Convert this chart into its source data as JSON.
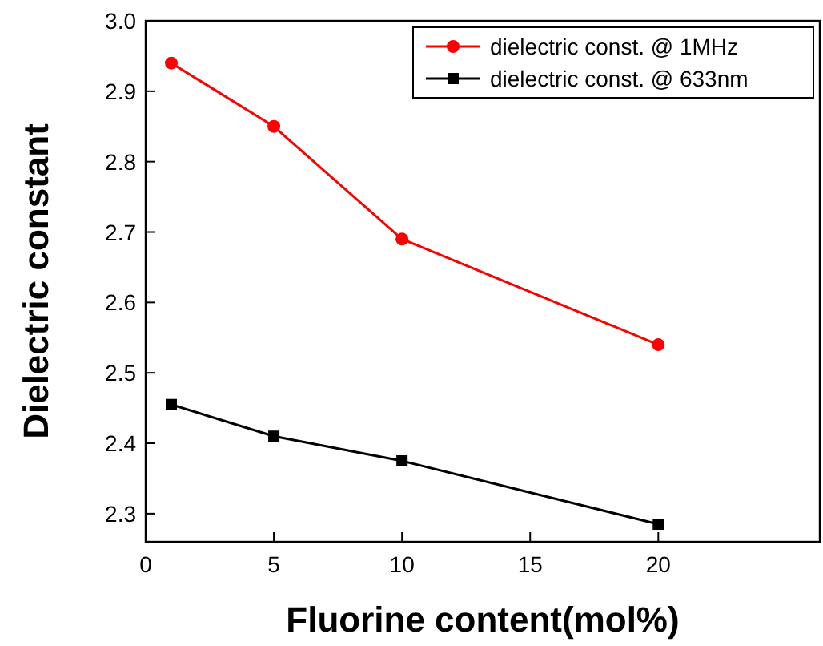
{
  "chart_data": {
    "type": "line",
    "xlabel": "Fluorine content(mol%)",
    "ylabel": "Dielectric constant",
    "x": [
      1,
      5,
      10,
      20
    ],
    "series": [
      {
        "name": "dielectric const. @ 1MHz",
        "color": "#ff0000",
        "marker": "circle",
        "values": [
          2.94,
          2.85,
          2.69,
          2.54
        ]
      },
      {
        "name": "dielectric const. @ 633nm",
        "color": "#000000",
        "marker": "square",
        "values": [
          2.455,
          2.41,
          2.375,
          2.285
        ]
      }
    ],
    "xlim": [
      0,
      26.3
    ],
    "xticks": [
      0,
      5,
      10,
      15,
      20
    ],
    "ylim": [
      2.26,
      3.0
    ],
    "yticks": [
      2.3,
      2.4,
      2.5,
      2.6,
      2.7,
      2.8,
      2.9,
      {
        "value": 3,
        "label": "3.0"
      }
    ],
    "grid": false,
    "legend": "top right",
    "line_style": "solid"
  }
}
